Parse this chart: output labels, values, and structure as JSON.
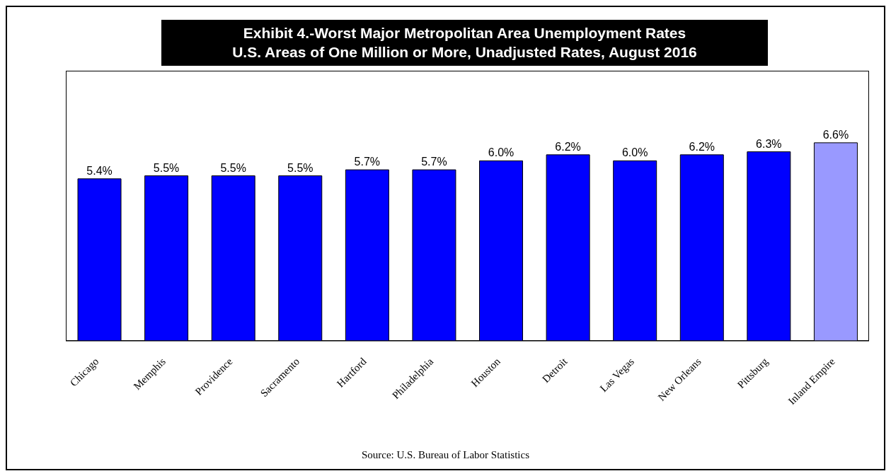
{
  "chart_data": {
    "type": "bar",
    "title": "Exhibit 4.-Worst Major Metropolitan Area Unemployment Rates",
    "subtitle": "U.S. Areas of One Million or More, Unadjusted Rates, August 2016",
    "categories": [
      "Chicago",
      "Memphis",
      "Providence",
      "Sacramento",
      "Hartford",
      "Philadelphia",
      "Houston",
      "Detroit",
      "Las Vegas",
      "New Orleans",
      "Pittsburg",
      "Inland Empire"
    ],
    "values": [
      5.4,
      5.5,
      5.5,
      5.5,
      5.7,
      5.7,
      6.0,
      6.2,
      6.0,
      6.2,
      6.3,
      6.6
    ],
    "value_labels": [
      "5.4%",
      "5.5%",
      "5.5%",
      "5.5%",
      "5.7%",
      "5.7%",
      "6.0%",
      "6.2%",
      "6.0%",
      "6.2%",
      "6.3%",
      "6.6%"
    ],
    "colors": [
      "#0000ff",
      "#0000ff",
      "#0000ff",
      "#0000ff",
      "#0000ff",
      "#0000ff",
      "#0000ff",
      "#0000ff",
      "#0000ff",
      "#0000ff",
      "#0000ff",
      "#9999ff"
    ],
    "ylim": [
      0,
      9
    ],
    "tick_labels": "x",
    "annotations": [
      "Source:  U.S. Bureau of Labor Statistics"
    ]
  }
}
